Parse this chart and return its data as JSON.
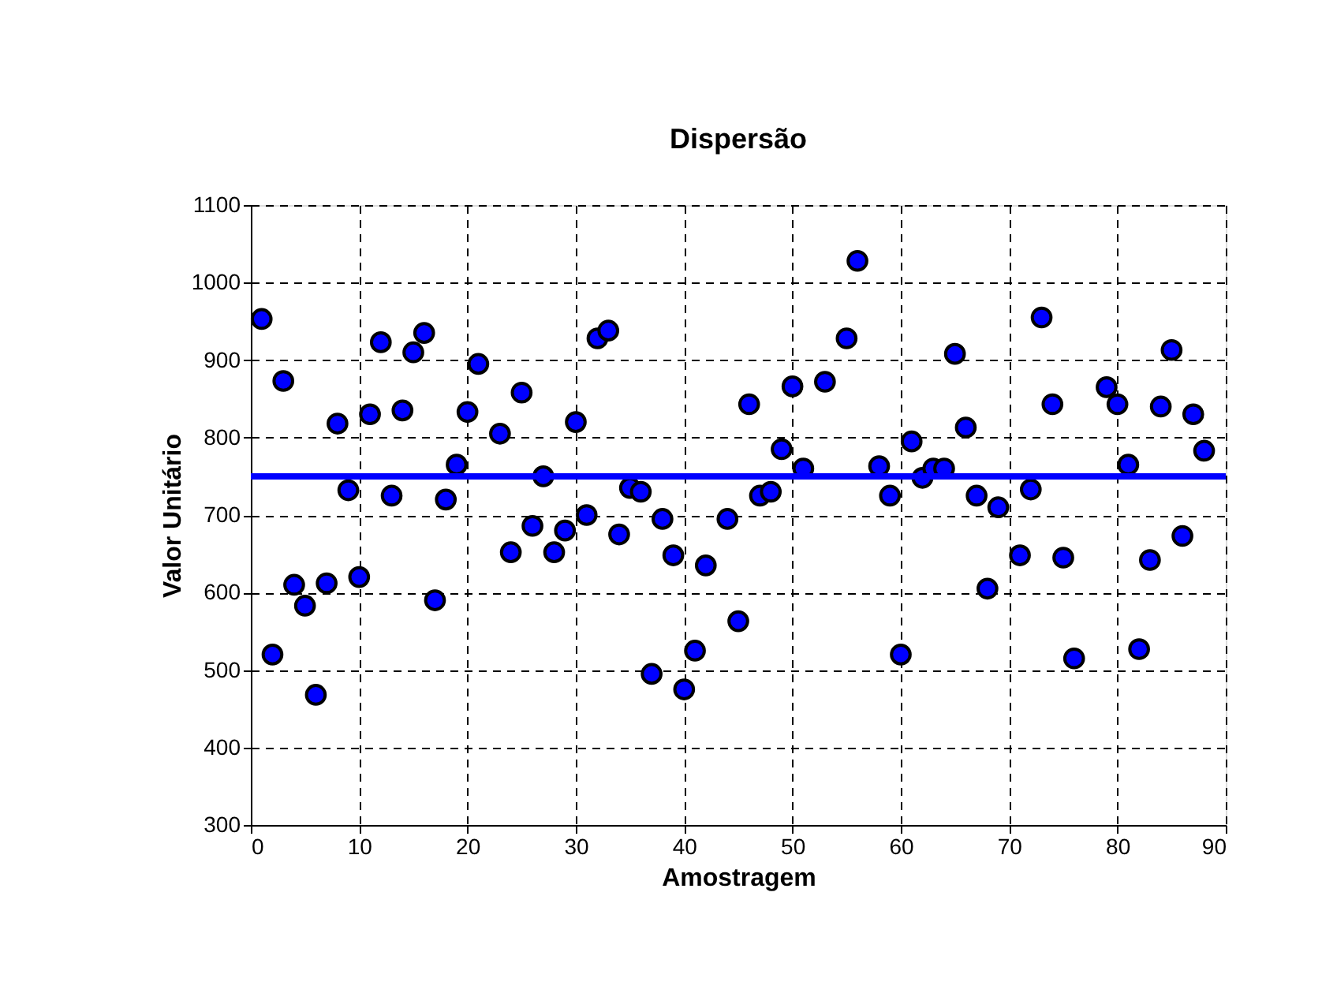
{
  "chart_data": {
    "type": "scatter",
    "title": "Dispersão",
    "xlabel": "Amostragem",
    "ylabel": "Valor Unitário",
    "x": [
      1,
      2,
      3,
      4,
      5,
      6,
      7,
      8,
      9,
      10,
      11,
      12,
      13,
      14,
      15,
      16,
      17,
      18,
      19,
      20,
      21,
      23,
      24,
      25,
      26,
      27,
      28,
      29,
      30,
      31,
      32,
      33,
      34,
      35,
      36,
      37,
      38,
      39,
      40,
      41,
      42,
      44,
      45,
      46,
      47,
      48,
      49,
      50,
      51,
      53,
      55,
      56,
      58,
      59,
      60,
      61,
      62,
      63,
      64,
      65,
      66,
      67,
      68,
      69,
      71,
      72,
      73,
      74,
      75,
      76,
      79,
      80,
      81,
      82,
      83,
      84,
      85,
      86,
      87,
      88
    ],
    "series": [
      {
        "color": "#0000ff",
        "values": [
          953,
          520,
          873,
          610,
          583,
          468,
          612,
          818,
          732,
          620,
          830,
          923,
          725,
          835,
          910,
          935,
          590,
          720,
          765,
          833,
          895,
          805,
          652,
          858,
          686,
          750,
          652,
          680,
          820,
          700,
          928,
          938,
          675,
          735,
          730,
          495,
          695,
          648,
          475,
          525,
          635,
          695,
          563,
          843,
          725,
          730,
          785,
          866,
          760,
          872,
          928,
          1028,
          763,
          725,
          520,
          795,
          748,
          760,
          760,
          908,
          813,
          725,
          605,
          710,
          648,
          733,
          955,
          843,
          645,
          515,
          865,
          843,
          765,
          527,
          642,
          840,
          913,
          673,
          830,
          783
        ]
      }
    ],
    "xlim": [
      0,
      90
    ],
    "xticks": [
      0,
      10,
      20,
      30,
      40,
      50,
      60,
      70,
      80,
      90
    ],
    "ylim": [
      300,
      1100
    ],
    "yticks": [
      300,
      400,
      500,
      600,
      700,
      800,
      900,
      1000,
      1100
    ],
    "ref_lines": [
      {
        "axis": "y",
        "value": 750,
        "color": "#0000ff",
        "line_style": "solid"
      }
    ],
    "grid": true,
    "marker": "circle"
  }
}
